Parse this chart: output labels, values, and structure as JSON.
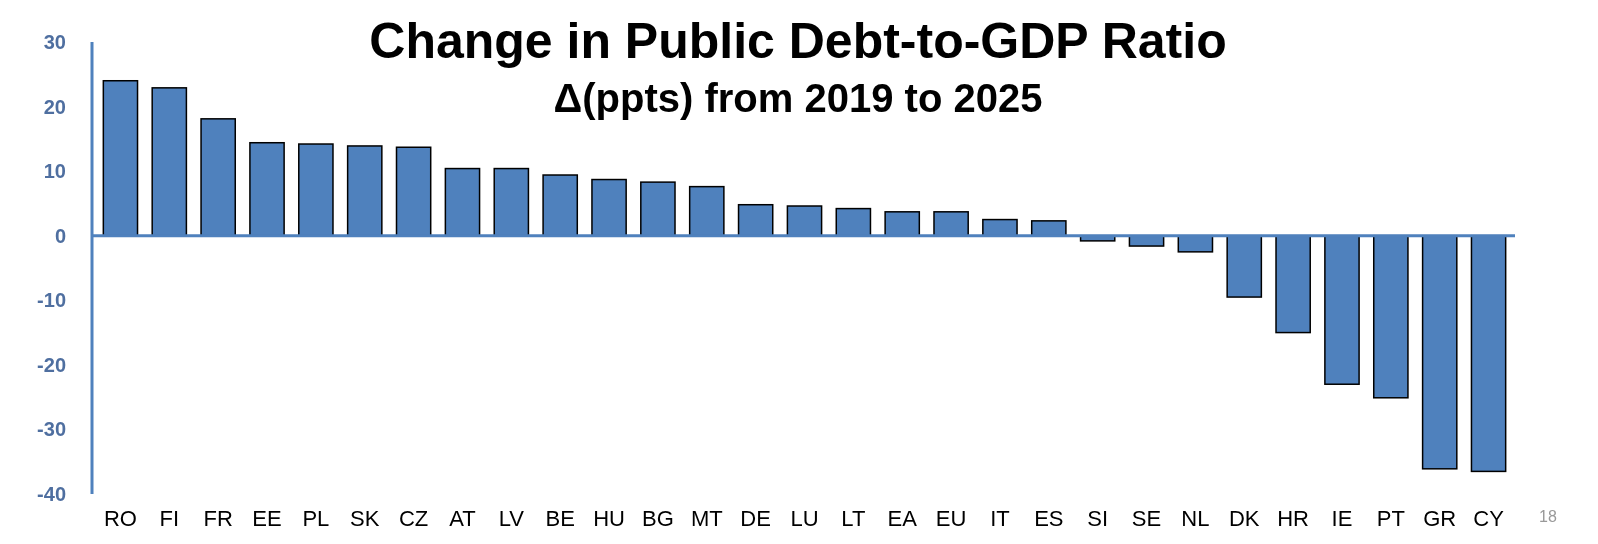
{
  "chart_data": {
    "type": "bar",
    "title": "Change in Public Debt-to-GDP Ratio",
    "subtitle": "Δ(ppts) from 2019 to 2025",
    "categories": [
      "RO",
      "FI",
      "FR",
      "EE",
      "PL",
      "SK",
      "CZ",
      "AT",
      "LV",
      "BE",
      "HU",
      "BG",
      "MT",
      "DE",
      "LU",
      "LT",
      "EA",
      "EU",
      "IT",
      "ES",
      "SI",
      "SE",
      "NL",
      "DK",
      "HR",
      "IE",
      "PT",
      "GR",
      "CY"
    ],
    "values": [
      24.0,
      22.9,
      18.1,
      14.4,
      14.2,
      13.9,
      13.7,
      10.4,
      10.4,
      9.4,
      8.7,
      8.3,
      7.6,
      4.8,
      4.6,
      4.2,
      3.7,
      3.7,
      2.5,
      2.3,
      -0.8,
      -1.6,
      -2.5,
      -9.5,
      -15.0,
      -23.0,
      -25.1,
      -36.1,
      -36.5
    ],
    "color": "#4f81bd",
    "ylim": [
      -40,
      30
    ],
    "yticks": [
      -40,
      -30,
      -20,
      -10,
      0,
      10,
      20,
      30
    ],
    "grid": false,
    "ref_lines": [
      {
        "axis": "y",
        "value": 0,
        "color": "#4f81bd"
      }
    ],
    "annotations": [
      "18"
    ]
  }
}
